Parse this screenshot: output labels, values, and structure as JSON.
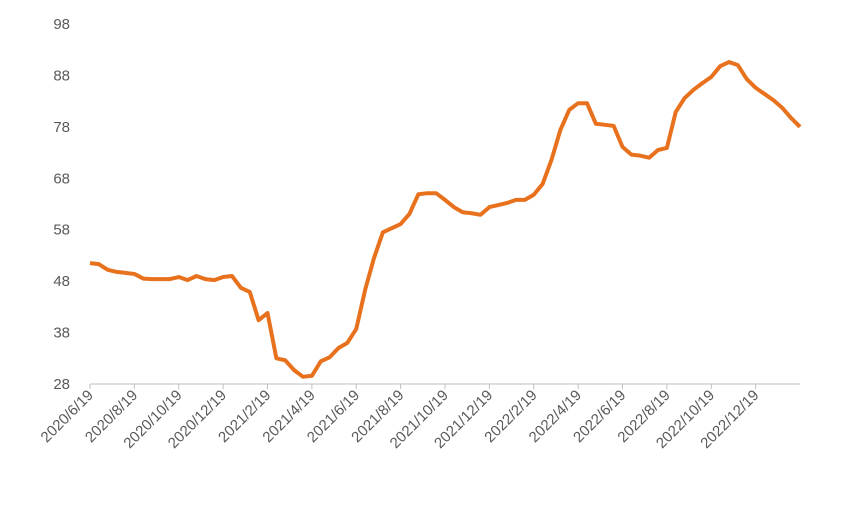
{
  "chart_data": {
    "type": "line",
    "categories": [
      "2020/6/19",
      null,
      null,
      null,
      null,
      "2020/8/19",
      null,
      null,
      null,
      null,
      "2020/10/19",
      null,
      null,
      null,
      null,
      "2020/12/19",
      null,
      null,
      null,
      null,
      "2021/2/19",
      null,
      null,
      null,
      null,
      "2021/4/19",
      null,
      null,
      null,
      null,
      "2021/6/19",
      null,
      null,
      null,
      null,
      "2021/8/19",
      null,
      null,
      null,
      null,
      "2021/10/19",
      null,
      null,
      null,
      null,
      "2021/12/19",
      null,
      null,
      null,
      null,
      "2022/2/19",
      null,
      null,
      null,
      null,
      "2022/4/19",
      null,
      null,
      null,
      null,
      "2022/6/19",
      null,
      null,
      null,
      null,
      "2022/8/19",
      null,
      null,
      null,
      null,
      "2022/10/19",
      null,
      null,
      null,
      null,
      "2022/12/19",
      null,
      null,
      null,
      null,
      null
    ],
    "series": [
      {
        "color": "#e8711d",
        "values": [
          51.5,
          51.3,
          50.2,
          49.8,
          49.6,
          49.4,
          48.5,
          48.4,
          48.4,
          48.4,
          48.8,
          48.2,
          49.0,
          48.4,
          48.2,
          48.8,
          49.0,
          46.7,
          45.9,
          40.4,
          41.8,
          33.0,
          32.6,
          30.7,
          29.4,
          29.6,
          32.4,
          33.2,
          35.0,
          36.0,
          38.7,
          46.3,
          52.5,
          57.5,
          58.3,
          59.1,
          61.1,
          64.9,
          65.1,
          65.1,
          63.8,
          62.4,
          61.4,
          61.2,
          60.9,
          62.4,
          62.8,
          63.2,
          63.8,
          63.8,
          64.8,
          66.9,
          71.6,
          77.4,
          81.3,
          82.6,
          82.6,
          78.6,
          78.4,
          78.2,
          74.1,
          72.6,
          72.4,
          72.0,
          73.5,
          73.9,
          80.9,
          83.6,
          85.2,
          86.5,
          87.7,
          89.8,
          90.6,
          90.0,
          87.3,
          85.6,
          84.4,
          83.2,
          81.7,
          79.7,
          78.0
        ]
      }
    ],
    "ylim": [
      28,
      98
    ],
    "yticks": [
      28,
      38,
      48,
      58,
      68,
      78,
      88,
      98
    ]
  }
}
